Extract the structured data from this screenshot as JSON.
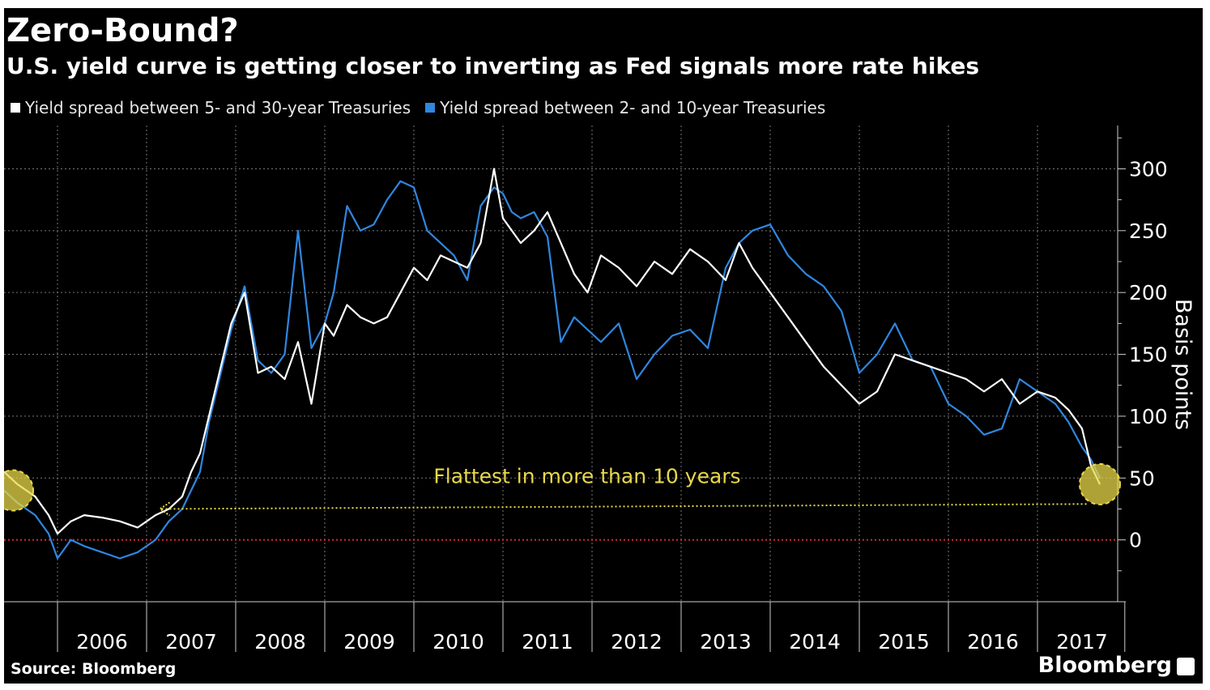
{
  "title": "Zero-Bound?",
  "subtitle": "U.S. yield curve is getting closer to inverting as Fed signals more rate hikes",
  "source": "Source: Bloomberg",
  "brand": "Bloomberg",
  "colors": {
    "background": "#000000",
    "series_white": "#ffffff",
    "series_blue": "#2f87e0",
    "zero_line": "#d42b2b",
    "annotation": "#e8d84a",
    "grid": "#777777"
  },
  "chart_data": {
    "type": "line",
    "title": "Zero-Bound?",
    "subtitle": "U.S. yield curve is getting closer to inverting as Fed signals more rate hikes",
    "xlabel": "",
    "ylabel": "Basis points",
    "xlim": [
      2005.4,
      2017.9
    ],
    "ylim": [
      -50,
      335
    ],
    "x_ticks": [
      "2006",
      "2007",
      "2008",
      "2009",
      "2010",
      "2011",
      "2012",
      "2013",
      "2014",
      "2015",
      "2016",
      "2017"
    ],
    "y_ticks": [
      "0",
      "50",
      "100",
      "150",
      "200",
      "250",
      "300"
    ],
    "legend_position": "top-left",
    "reference_line": {
      "y": 0,
      "style": "dotted"
    },
    "annotation": {
      "text": "Flattest in more than 10 years",
      "arrow_from": [
        2017.55,
        29
      ],
      "arrow_to": [
        2007.15,
        25
      ],
      "highlight_points": [
        [
          2005.5,
          40
        ],
        [
          2017.7,
          45
        ]
      ]
    },
    "series": [
      {
        "name": "Yield spread between 5- and 30-year Treasuries",
        "color": "#ffffff",
        "x": [
          2005.4,
          2005.55,
          2005.75,
          2005.9,
          2006.0,
          2006.15,
          2006.3,
          2006.5,
          2006.7,
          2006.9,
          2007.1,
          2007.25,
          2007.4,
          2007.5,
          2007.6,
          2007.7,
          2007.8,
          2007.95,
          2008.1,
          2008.25,
          2008.4,
          2008.55,
          2008.7,
          2008.85,
          2009.0,
          2009.1,
          2009.25,
          2009.4,
          2009.55,
          2009.7,
          2009.85,
          2010.0,
          2010.15,
          2010.3,
          2010.45,
          2010.6,
          2010.75,
          2010.9,
          2011.0,
          2011.1,
          2011.2,
          2011.35,
          2011.5,
          2011.65,
          2011.8,
          2011.95,
          2012.1,
          2012.3,
          2012.5,
          2012.7,
          2012.9,
          2013.1,
          2013.3,
          2013.5,
          2013.65,
          2013.8,
          2014.0,
          2014.2,
          2014.4,
          2014.6,
          2014.8,
          2015.0,
          2015.2,
          2015.4,
          2015.6,
          2015.8,
          2016.0,
          2016.2,
          2016.4,
          2016.6,
          2016.8,
          2017.0,
          2017.2,
          2017.35,
          2017.5,
          2017.6,
          2017.7
        ],
        "y": [
          55,
          45,
          35,
          20,
          5,
          15,
          20,
          18,
          15,
          10,
          20,
          25,
          35,
          55,
          70,
          100,
          130,
          175,
          200,
          135,
          140,
          130,
          160,
          110,
          175,
          165,
          190,
          180,
          175,
          180,
          200,
          220,
          210,
          230,
          225,
          220,
          240,
          300,
          260,
          250,
          240,
          250,
          265,
          240,
          215,
          200,
          230,
          220,
          205,
          225,
          215,
          235,
          225,
          210,
          240,
          220,
          200,
          180,
          160,
          140,
          125,
          110,
          120,
          150,
          145,
          140,
          135,
          130,
          120,
          130,
          110,
          120,
          115,
          105,
          90,
          60,
          45
        ]
      },
      {
        "name": "Yield spread between 2- and 10-year Treasuries",
        "color": "#2f87e0",
        "x": [
          2005.4,
          2005.55,
          2005.75,
          2005.9,
          2006.0,
          2006.15,
          2006.3,
          2006.5,
          2006.7,
          2006.9,
          2007.1,
          2007.25,
          2007.4,
          2007.5,
          2007.6,
          2007.7,
          2007.8,
          2007.95,
          2008.1,
          2008.25,
          2008.4,
          2008.55,
          2008.7,
          2008.85,
          2009.0,
          2009.1,
          2009.25,
          2009.4,
          2009.55,
          2009.7,
          2009.85,
          2010.0,
          2010.15,
          2010.3,
          2010.45,
          2010.6,
          2010.75,
          2010.9,
          2011.0,
          2011.1,
          2011.2,
          2011.35,
          2011.5,
          2011.65,
          2011.8,
          2011.95,
          2012.1,
          2012.3,
          2012.5,
          2012.7,
          2012.9,
          2013.1,
          2013.3,
          2013.5,
          2013.65,
          2013.8,
          2014.0,
          2014.2,
          2014.4,
          2014.6,
          2014.8,
          2015.0,
          2015.2,
          2015.4,
          2015.6,
          2015.8,
          2016.0,
          2016.2,
          2016.4,
          2016.6,
          2016.8,
          2017.0,
          2017.2,
          2017.35,
          2017.5,
          2017.6,
          2017.7
        ],
        "y": [
          40,
          30,
          20,
          5,
          -15,
          0,
          -5,
          -10,
          -15,
          -10,
          0,
          15,
          25,
          40,
          55,
          95,
          125,
          170,
          205,
          145,
          135,
          150,
          250,
          155,
          175,
          200,
          270,
          250,
          255,
          275,
          290,
          285,
          250,
          240,
          230,
          210,
          270,
          285,
          280,
          265,
          260,
          265,
          245,
          160,
          180,
          170,
          160,
          175,
          130,
          150,
          165,
          170,
          155,
          220,
          240,
          250,
          255,
          230,
          215,
          205,
          185,
          135,
          150,
          175,
          145,
          140,
          110,
          100,
          85,
          90,
          130,
          120,
          110,
          95,
          75,
          65,
          50
        ]
      }
    ]
  }
}
